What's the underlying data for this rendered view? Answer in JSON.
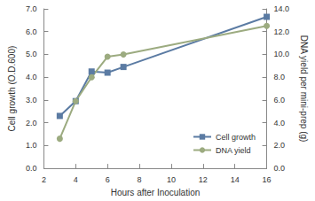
{
  "chart_data": {
    "type": "line",
    "x_label": "Hours after Inoculation",
    "y_label": "Cell growth (O.D.600)",
    "y2_label": "DNA yield per mini-prep (g)",
    "x": [
      3,
      4,
      5,
      6,
      7,
      16
    ],
    "xlim": [
      2,
      16
    ],
    "xticks": [
      2,
      4,
      6,
      8,
      10,
      12,
      14,
      16
    ],
    "ylim": [
      0,
      7
    ],
    "yticks": [
      {
        "value": 0,
        "label": "0.0"
      },
      {
        "value": 1,
        "label": "1.0"
      },
      {
        "value": 2,
        "label": "2.0"
      },
      {
        "value": 3,
        "label": "3.0"
      },
      {
        "value": 4,
        "label": "4.0"
      },
      {
        "value": 5,
        "label": "5.0"
      },
      {
        "value": 6,
        "label": "6.0"
      },
      {
        "value": 7,
        "label": "7.0"
      }
    ],
    "y2lim": [
      0,
      14
    ],
    "y2ticks": [
      {
        "value": 0,
        "label": "0.0"
      },
      {
        "value": 2,
        "label": "2.0"
      },
      {
        "value": 4,
        "label": "4.0"
      },
      {
        "value": 6,
        "label": "6.0"
      },
      {
        "value": 8,
        "label": "8.0"
      },
      {
        "value": 10,
        "label": "10.0"
      },
      {
        "value": 12,
        "label": "12.0"
      },
      {
        "value": 14,
        "label": "14.0"
      }
    ],
    "series": [
      {
        "name": "Cell growth",
        "color": "#5b7ba3",
        "marker": "square",
        "values": [
          2.3,
          2.95,
          4.25,
          4.2,
          4.45,
          6.65
        ]
      },
      {
        "name": "DNA yield",
        "color": "#9cab80",
        "marker": "circle",
        "axis": "y2",
        "values": [
          2.6,
          5.9,
          8.0,
          9.8,
          10.0,
          12.5
        ]
      }
    ],
    "legend": "lower right",
    "grid": false
  }
}
